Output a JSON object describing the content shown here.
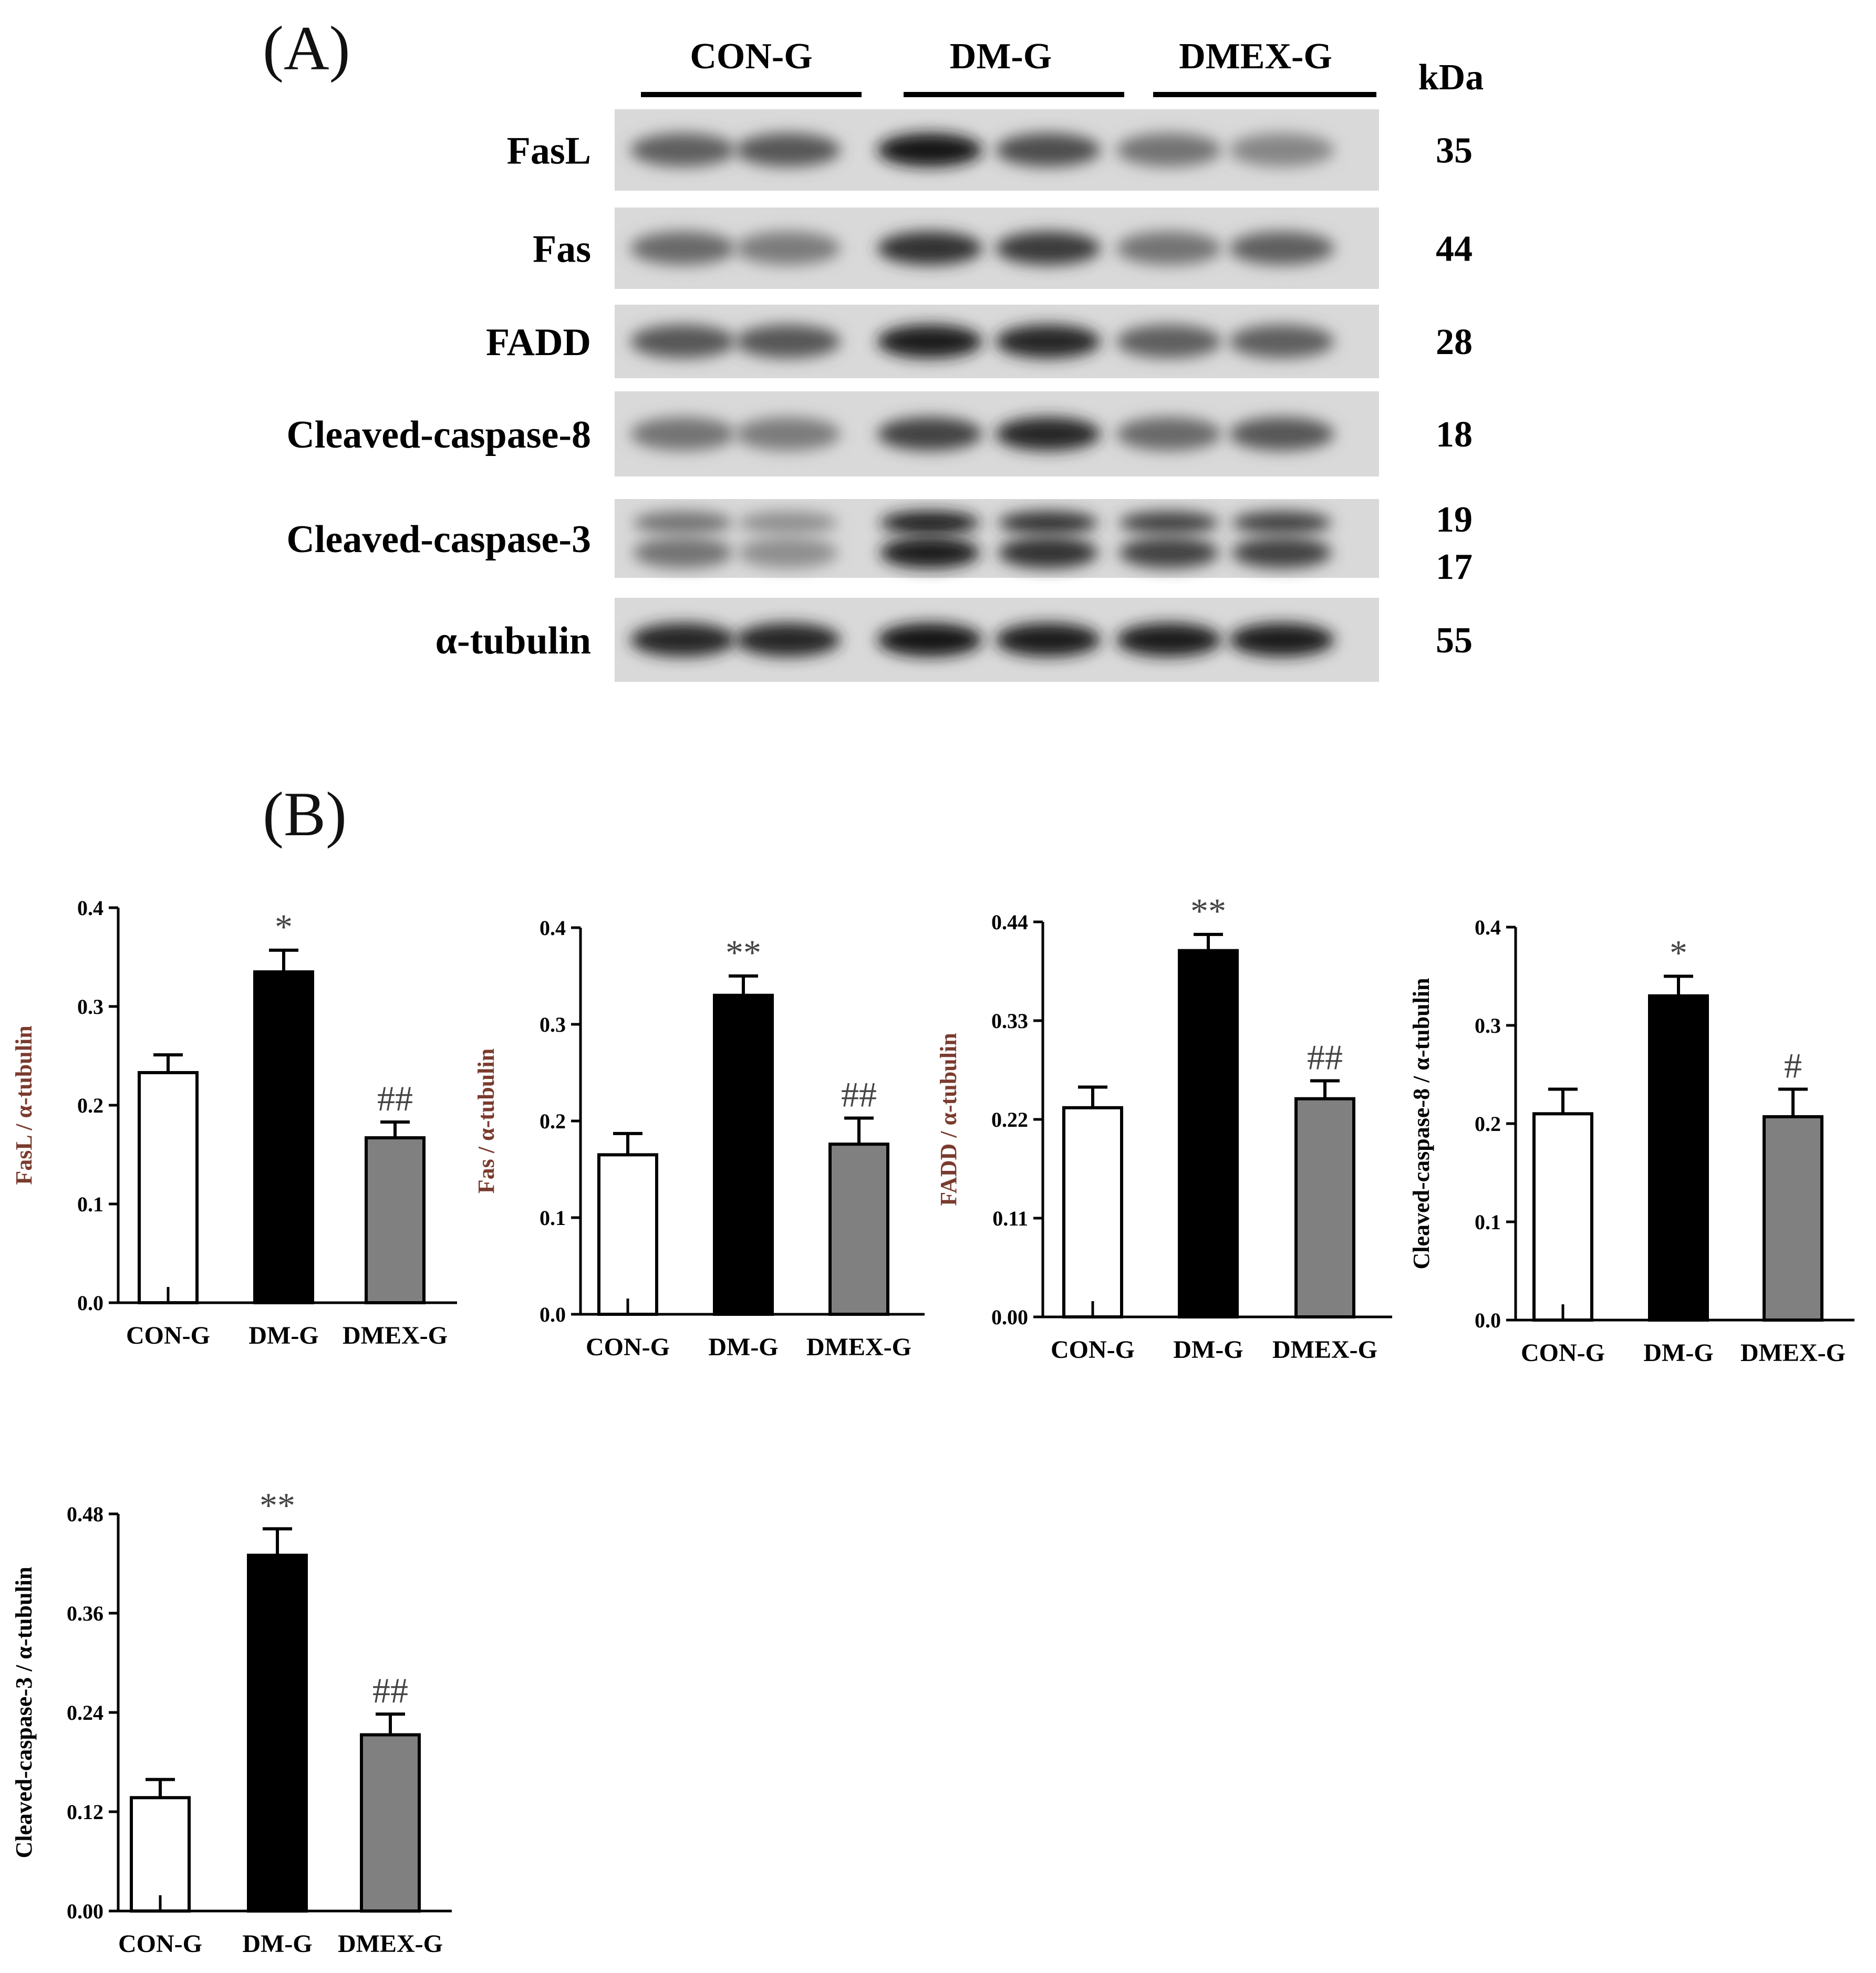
{
  "panel_a": {
    "label": "(A)",
    "groups": [
      "CON-G",
      "DM-G",
      "DMEX-G"
    ],
    "kda_header": "kDa",
    "rows": [
      {
        "label": "FasL",
        "kda": [
          "35"
        ],
        "intensity": [
          0.55,
          0.6,
          0.95,
          0.65,
          0.45,
          0.35
        ]
      },
      {
        "label": "Fas",
        "kda": [
          "44"
        ],
        "intensity": [
          0.5,
          0.4,
          0.8,
          0.75,
          0.45,
          0.55
        ]
      },
      {
        "label": "FADD",
        "kda": [
          "28"
        ],
        "intensity": [
          0.6,
          0.6,
          0.9,
          0.85,
          0.55,
          0.55
        ]
      },
      {
        "label": "Cleaved-caspase-8",
        "kda": [
          "18"
        ],
        "intensity": [
          0.45,
          0.4,
          0.7,
          0.85,
          0.5,
          0.6
        ]
      },
      {
        "label": "Cleaved-caspase-3",
        "kda": [
          "19",
          "17"
        ],
        "intensity": [
          0.45,
          0.3,
          0.9,
          0.8,
          0.7,
          0.7
        ]
      },
      {
        "label": "α-tubulin",
        "kda": [
          "55"
        ],
        "intensity": [
          0.85,
          0.85,
          0.95,
          0.9,
          0.9,
          0.9
        ]
      }
    ]
  },
  "panel_b": {
    "label": "(B)"
  },
  "colors": {
    "con": "#ffffff",
    "dm": "#000000",
    "dmex": "#808080",
    "ylabel_accent": "#7a3b2e"
  },
  "chart_data": [
    {
      "type": "bar",
      "categories": [
        "CON-G",
        "DM-G",
        "DMEX-G"
      ],
      "values": [
        0.233,
        0.335,
        0.167
      ],
      "errors": [
        0.018,
        0.022,
        0.016
      ],
      "annotations": [
        "",
        "*",
        "##"
      ],
      "ylabel_parts": [
        "FasL / ",
        "α-tubulin"
      ],
      "ylim": [
        0,
        0.4
      ],
      "yticks": [
        "0.0",
        "0.1",
        "0.2",
        "0.3",
        "0.4"
      ]
    },
    {
      "type": "bar",
      "categories": [
        "CON-G",
        "DM-G",
        "DMEX-G"
      ],
      "values": [
        0.165,
        0.33,
        0.176
      ],
      "errors": [
        0.022,
        0.02,
        0.027
      ],
      "annotations": [
        "",
        "**",
        "##"
      ],
      "ylabel_parts": [
        "Fas / ",
        "α-tubulin"
      ],
      "ylim": [
        0,
        0.4
      ],
      "yticks": [
        "0.0",
        "0.1",
        "0.2",
        "0.3",
        "0.4"
      ]
    },
    {
      "type": "bar",
      "categories": [
        "CON-G",
        "DM-G",
        "DMEX-G"
      ],
      "values": [
        0.233,
        0.408,
        0.243
      ],
      "errors": [
        0.023,
        0.018,
        0.02
      ],
      "annotations": [
        "",
        "**",
        "##"
      ],
      "ylabel_parts": [
        "FADD / ",
        "α-tubulin"
      ],
      "ylim": [
        0,
        0.44
      ],
      "yticks": [
        "0.00",
        "0.11",
        "0.22",
        "0.33",
        "0.44"
      ]
    },
    {
      "type": "bar",
      "categories": [
        "CON-G",
        "DM-G",
        "DMEX-G"
      ],
      "values": [
        0.21,
        0.33,
        0.207
      ],
      "errors": [
        0.025,
        0.02,
        0.028
      ],
      "annotations": [
        "",
        "*",
        "#"
      ],
      "ylabel_parts": [
        "Cleaved-caspase-8 / ",
        "α-tubulin"
      ],
      "ylim": [
        0,
        0.4
      ],
      "yticks": [
        "0.0",
        "0.1",
        "0.2",
        "0.3",
        "0.4"
      ]
    },
    {
      "type": "bar",
      "categories": [
        "CON-G",
        "DM-G",
        "DMEX-G"
      ],
      "values": [
        0.137,
        0.43,
        0.213
      ],
      "errors": [
        0.022,
        0.032,
        0.025
      ],
      "annotations": [
        "",
        "**",
        "##"
      ],
      "ylabel_parts": [
        "Cleaved-caspase-3 / ",
        "α-tubulin"
      ],
      "ylim": [
        0,
        0.48
      ],
      "yticks": [
        "0.00",
        "0.12",
        "0.24",
        "0.36",
        "0.48"
      ]
    }
  ]
}
